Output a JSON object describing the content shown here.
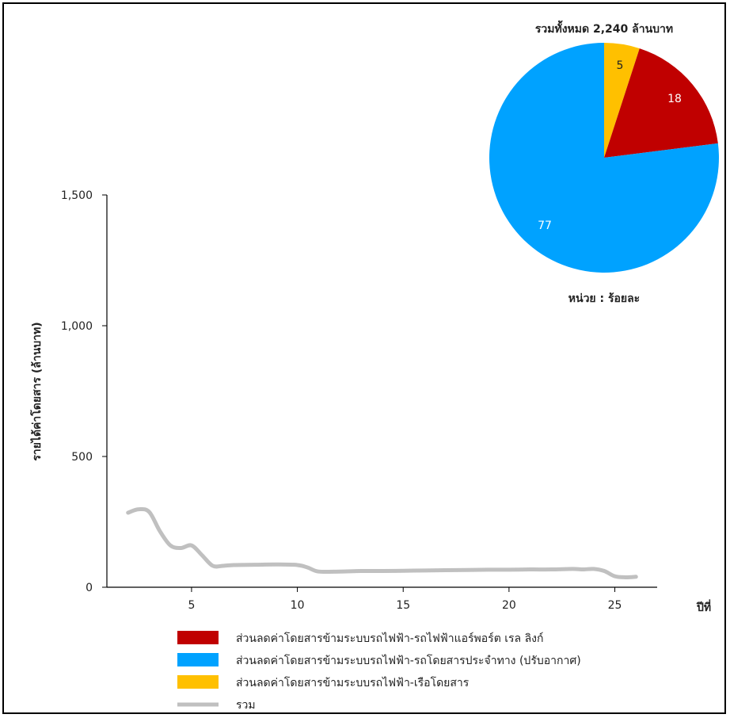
{
  "chart_data": [
    {
      "type": "line",
      "ylabel": "รายได้ค่าโดยสาร (ล้านบาท)",
      "xlabel": "ปีที่",
      "ylim": [
        0,
        1500
      ],
      "xlim": [
        1,
        27
      ],
      "yticks": [
        0,
        500,
        1000,
        1500
      ],
      "ytick_labels": [
        "0",
        "500",
        "1,000",
        "1,500"
      ],
      "xticks": [
        5,
        10,
        15,
        20,
        25
      ],
      "xtick_labels": [
        "5",
        "10",
        "15",
        "20",
        "25"
      ],
      "series": [
        {
          "name": "รวม",
          "color": "#c0c0c0",
          "x": [
            2,
            2.5,
            3,
            3.5,
            4,
            4.5,
            5,
            5.5,
            6,
            6.5,
            7,
            8,
            9,
            10,
            10.5,
            11,
            12,
            13,
            14,
            15,
            16,
            17,
            18,
            19,
            20,
            21,
            22,
            23,
            23.5,
            24,
            24.5,
            25,
            25.5,
            26
          ],
          "y": [
            285,
            298,
            288,
            215,
            160,
            150,
            160,
            122,
            82,
            82,
            85,
            86,
            87,
            85,
            75,
            60,
            60,
            62,
            62,
            63,
            64,
            65,
            66,
            67,
            67,
            68,
            68,
            70,
            68,
            70,
            62,
            42,
            38,
            40
          ]
        }
      ]
    },
    {
      "type": "pie",
      "title": "รวมทั้งหมด 2,240 ล้านบาท",
      "unit_label": "หน่วย : ร้อยละ",
      "slices": [
        {
          "label": "5",
          "value": 5,
          "color": "#ffc000"
        },
        {
          "label": "18",
          "value": 18,
          "color": "#c00000"
        },
        {
          "label": "77",
          "value": 77,
          "color": "#00a2ff"
        }
      ]
    }
  ],
  "legend": [
    {
      "label": "ส่วนลดค่าโดยสารข้ามระบบรถไฟฟ้า-รถไฟฟ้าแอร์พอร์ต เรล ลิงก์",
      "color": "#c00000",
      "kind": "box"
    },
    {
      "label": "ส่วนลดค่าโดยสารข้ามระบบรถไฟฟ้า-รถโดยสารประจำทาง (ปรับอากาศ)",
      "color": "#00a2ff",
      "kind": "box"
    },
    {
      "label": "ส่วนลดค่าโดยสารข้ามระบบรถไฟฟ้า-เรือโดยสาร",
      "color": "#ffc000",
      "kind": "box"
    },
    {
      "label": "รวม",
      "color": "#c0c0c0",
      "kind": "line"
    }
  ]
}
